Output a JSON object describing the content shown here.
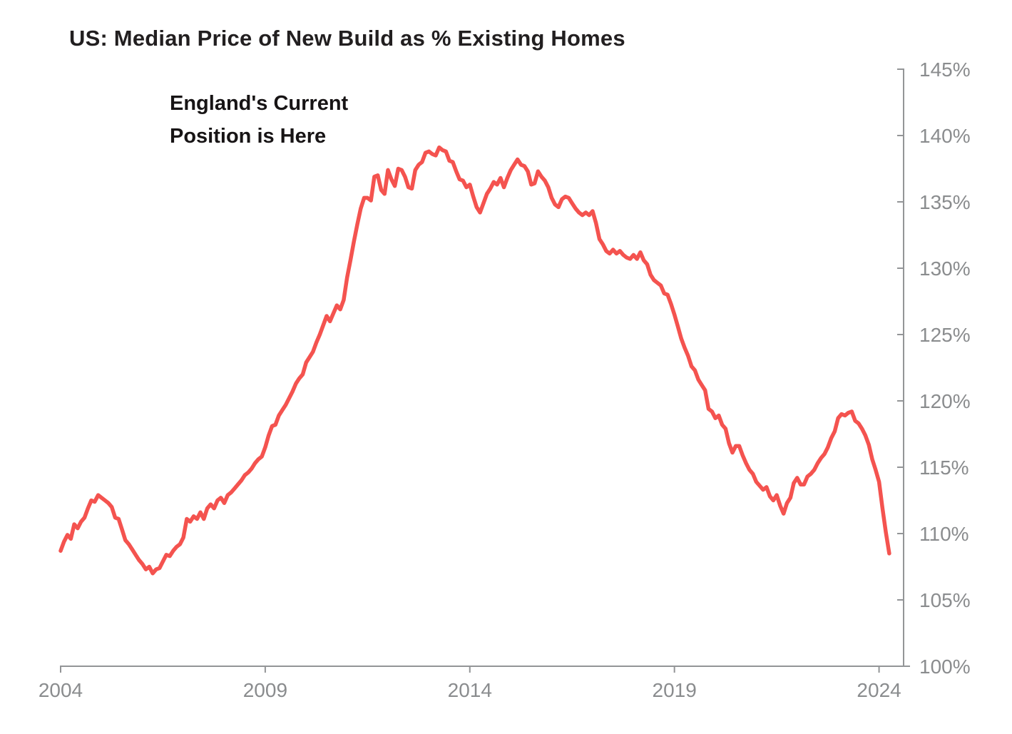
{
  "chart_data": {
    "type": "line",
    "title": "US: Median Price of New Build as % Existing Homes",
    "annotation_lines": [
      "England's Current",
      "Position is Here"
    ],
    "grid": false,
    "legend": "none",
    "axis_color": "#939597",
    "x_axis": {
      "range": [
        2004,
        2024.6
      ],
      "ticks": [
        2004,
        2009,
        2014,
        2019,
        2024
      ],
      "label_color": "#8a8c8e"
    },
    "y_axis": {
      "position": "right",
      "range": [
        100,
        145
      ],
      "ticks": [
        100,
        105,
        110,
        115,
        120,
        125,
        130,
        135,
        140,
        145
      ],
      "suffix": "%",
      "label_color": "#8a8c8e"
    },
    "series": [
      {
        "name": "US median new-build price as % of existing homes",
        "color": "#f4534f",
        "frequency": "monthly",
        "start_year": 2004,
        "end_year": 2024.25,
        "values": [
          108.7,
          109.4,
          109.9,
          109.6,
          110.7,
          110.4,
          110.9,
          111.2,
          111.9,
          112.5,
          112.4,
          112.9,
          112.7,
          112.5,
          112.3,
          112.0,
          111.2,
          111.1,
          110.3,
          109.5,
          109.2,
          108.8,
          108.4,
          108.0,
          107.7,
          107.3,
          107.5,
          107.0,
          107.3,
          107.4,
          107.9,
          108.4,
          108.3,
          108.7,
          109.0,
          109.2,
          109.7,
          111.1,
          110.9,
          111.3,
          111.1,
          111.6,
          111.1,
          111.9,
          112.2,
          111.9,
          112.5,
          112.7,
          112.3,
          112.9,
          113.1,
          113.4,
          113.7,
          114.0,
          114.4,
          114.6,
          114.9,
          115.3,
          115.6,
          115.8,
          116.5,
          117.4,
          118.1,
          118.2,
          118.9,
          119.3,
          119.7,
          120.2,
          120.7,
          121.3,
          121.7,
          122.0,
          122.9,
          123.3,
          123.7,
          124.4,
          125.0,
          125.7,
          126.4,
          126.0,
          126.6,
          127.2,
          126.9,
          127.6,
          129.3,
          130.6,
          132.0,
          133.3,
          134.5,
          135.3,
          135.3,
          135.1,
          136.9,
          137.0,
          135.9,
          135.6,
          137.4,
          136.7,
          136.2,
          137.5,
          137.4,
          136.9,
          136.1,
          136.0,
          137.4,
          137.8,
          138.0,
          138.7,
          138.8,
          138.6,
          138.5,
          139.1,
          138.9,
          138.8,
          138.1,
          138.0,
          137.3,
          136.7,
          136.6,
          136.1,
          136.3,
          135.4,
          134.6,
          134.2,
          134.9,
          135.6,
          136.0,
          136.5,
          136.3,
          136.8,
          136.1,
          136.8,
          137.4,
          137.8,
          138.2,
          137.8,
          137.7,
          137.3,
          136.3,
          136.4,
          137.3,
          136.9,
          136.6,
          136.1,
          135.3,
          134.8,
          134.6,
          135.2,
          135.4,
          135.3,
          134.9,
          134.5,
          134.2,
          134.0,
          134.2,
          134.0,
          134.3,
          133.4,
          132.2,
          131.8,
          131.3,
          131.1,
          131.4,
          131.1,
          131.3,
          131.0,
          130.8,
          130.7,
          131.0,
          130.7,
          131.2,
          130.6,
          130.3,
          129.5,
          129.1,
          128.9,
          128.7,
          128.1,
          128.0,
          127.3,
          126.5,
          125.6,
          124.7,
          124.0,
          123.4,
          122.6,
          122.3,
          121.6,
          121.2,
          120.8,
          119.4,
          119.2,
          118.7,
          118.9,
          118.2,
          117.9,
          116.8,
          116.1,
          116.6,
          116.6,
          115.9,
          115.3,
          114.8,
          114.5,
          113.9,
          113.6,
          113.3,
          113.5,
          112.8,
          112.5,
          112.9,
          112.1,
          111.5,
          112.3,
          112.7,
          113.8,
          114.2,
          113.7,
          113.7,
          114.3,
          114.5,
          114.8,
          115.3,
          115.7,
          116.0,
          116.5,
          117.2,
          117.7,
          118.7,
          119.0,
          118.9,
          119.1,
          119.2,
          118.5,
          118.3,
          117.9,
          117.4,
          116.7,
          115.6,
          114.8,
          113.9,
          111.9,
          110.1,
          108.5
        ]
      }
    ]
  }
}
